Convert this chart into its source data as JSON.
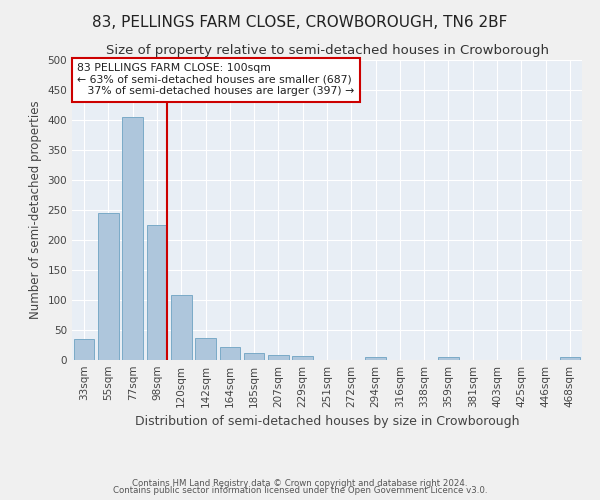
{
  "title": "83, PELLINGS FARM CLOSE, CROWBOROUGH, TN6 2BF",
  "subtitle": "Size of property relative to semi-detached houses in Crowborough",
  "xlabel": "Distribution of semi-detached houses by size in Crowborough",
  "ylabel": "Number of semi-detached properties",
  "categories": [
    "33sqm",
    "55sqm",
    "77sqm",
    "98sqm",
    "120sqm",
    "142sqm",
    "164sqm",
    "185sqm",
    "207sqm",
    "229sqm",
    "251sqm",
    "272sqm",
    "294sqm",
    "316sqm",
    "338sqm",
    "359sqm",
    "381sqm",
    "403sqm",
    "425sqm",
    "446sqm",
    "468sqm"
  ],
  "values": [
    35,
    245,
    405,
    225,
    108,
    36,
    22,
    12,
    8,
    6,
    0,
    0,
    5,
    0,
    0,
    5,
    0,
    0,
    0,
    0,
    5
  ],
  "bar_color": "#aec6dc",
  "bar_edge_color": "#7aaac8",
  "vline_color": "#cc0000",
  "annotation_text": "83 PELLINGS FARM CLOSE: 100sqm\n← 63% of semi-detached houses are smaller (687)\n   37% of semi-detached houses are larger (397) →",
  "annotation_box_color": "#ffffff",
  "annotation_box_edge_color": "#cc0000",
  "ylim": [
    0,
    500
  ],
  "yticks": [
    0,
    50,
    100,
    150,
    200,
    250,
    300,
    350,
    400,
    450,
    500
  ],
  "background_color": "#e8eef5",
  "grid_color": "#ffffff",
  "footer1": "Contains HM Land Registry data © Crown copyright and database right 2024.",
  "footer2": "Contains public sector information licensed under the Open Government Licence v3.0.",
  "title_fontsize": 11,
  "subtitle_fontsize": 9.5,
  "tick_fontsize": 7.5,
  "ylabel_fontsize": 8.5,
  "xlabel_fontsize": 9
}
